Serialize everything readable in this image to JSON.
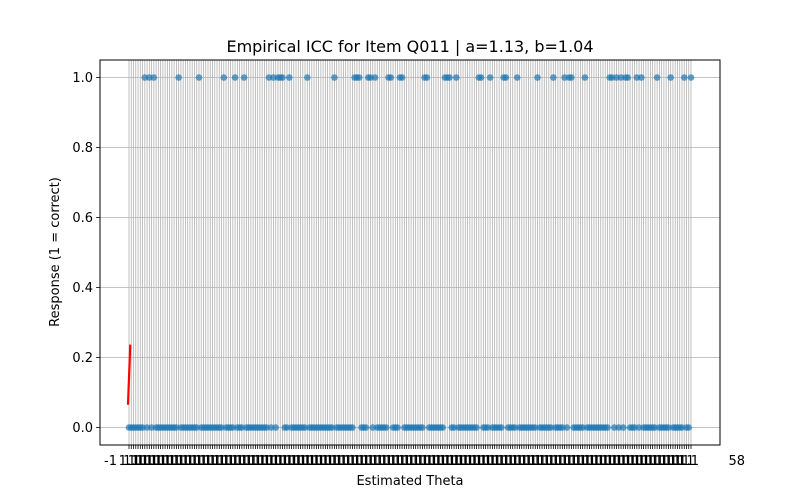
{
  "chart_data": {
    "type": "scatter",
    "title": "Empirical ICC for Item Q011 | a=1.13, b=1.04",
    "xlabel": "Estimated Theta",
    "ylabel": "Response (1 = correct)",
    "ylim": [
      -0.05,
      1.05
    ],
    "yticks": [
      "0.0",
      "0.2",
      "0.4",
      "0.6",
      "0.8",
      "1.0"
    ],
    "ytick_values": [
      0.0,
      0.2,
      0.4,
      0.6,
      0.8,
      1.0
    ],
    "x_axis_note": "categorical theta estimates; tick labels overlap into an illegible band",
    "x_tick_fragments": [
      "-1",
      "58"
    ],
    "grid": true,
    "n_points": 250,
    "correct_indices": [
      7,
      9,
      11,
      22,
      31,
      42,
      47,
      51,
      62,
      64,
      66,
      67,
      68,
      71,
      79,
      91,
      100,
      101,
      102,
      106,
      107,
      109,
      115,
      116,
      120,
      121,
      131,
      132,
      140,
      141,
      142,
      145,
      155,
      156,
      160,
      166,
      167,
      172,
      181,
      188,
      193,
      195,
      196,
      202,
      213,
      214,
      216,
      218,
      220,
      221,
      225,
      227,
      234,
      240,
      246,
      249
    ],
    "series": [],
    "model_curve": {
      "color": "#ff0000",
      "x_index_range": [
        0,
        1
      ],
      "y_range": [
        0.065,
        0.237
      ]
    },
    "colors": {
      "points": "#1f77b4",
      "grid": "#b0b0b0",
      "curve": "#ff0000"
    }
  }
}
